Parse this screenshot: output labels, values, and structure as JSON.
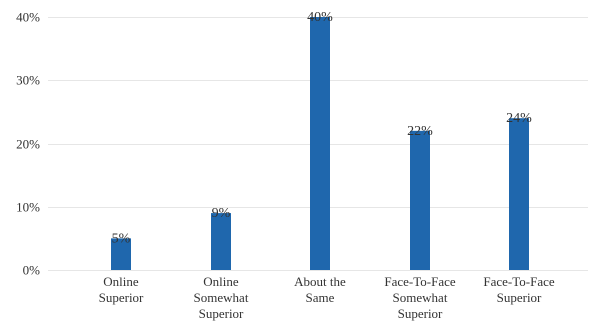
{
  "chart_data": {
    "type": "bar",
    "categories": [
      [
        "Online",
        "Superior"
      ],
      [
        "Online",
        "Somewhat",
        "Superior"
      ],
      [
        "About the",
        "Same"
      ],
      [
        "Face-To-Face",
        "Somewhat",
        "Superior"
      ],
      [
        "Face-To-Face",
        "Superior"
      ]
    ],
    "values": [
      5,
      9,
      40,
      22,
      24
    ],
    "value_labels": [
      "5%",
      "9%",
      "40%",
      "22%",
      "24%"
    ],
    "y_ticks": [
      0,
      10,
      20,
      30,
      40
    ],
    "y_tick_labels": [
      "0%",
      "10%",
      "20%",
      "30%",
      "40%"
    ],
    "ylim": [
      0,
      40
    ],
    "title": "",
    "xlabel": "",
    "ylabel": "",
    "grid": true,
    "bar_color": "#1f67ad"
  }
}
